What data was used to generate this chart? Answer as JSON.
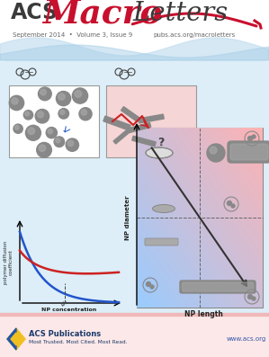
{
  "bg_color": "#e8f2fa",
  "header_bg": "#ffffff",
  "footer_bg": "#fce8e8",
  "title_acs": "ACS",
  "title_macro": "Macro",
  "title_letters": "Letters",
  "subtitle": "September 2014  •  Volume 3, Issue 9",
  "subtitle_right": "pubs.acs.org/macroletters",
  "footer_text": "ACS Publications",
  "footer_sub": "Most Trusted. Most Cited. Most Read.",
  "footer_url": "www.acs.org",
  "title_acs_color": "#3a3a3a",
  "title_macro_color": "#c8102e",
  "title_letters_color": "#3a3a3a",
  "subtitle_color": "#666666",
  "wave_color": "#c8e4f5",
  "content_bg": "#ddeef8"
}
